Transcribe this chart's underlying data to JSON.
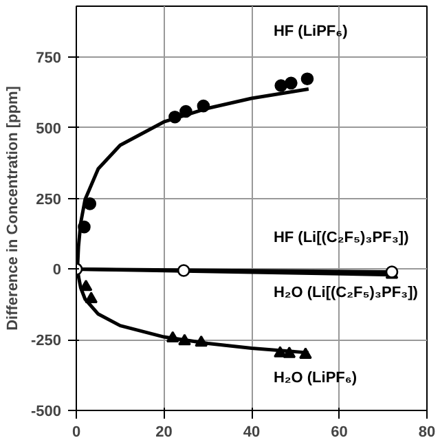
{
  "chart_data": {
    "type": "scatter",
    "ylabel": "Difference in Concentration [ppm]",
    "xlim": [
      0,
      80
    ],
    "xticks": [
      0,
      20,
      40,
      60,
      80
    ],
    "ylim": [
      -500,
      930
    ],
    "yticks": [
      -500,
      -250,
      0,
      250,
      500,
      750
    ],
    "grid": true,
    "series": [
      {
        "name": "HF (LiPF₆)",
        "color": "#000000",
        "marker": "circle",
        "x": [
          1.8,
          3.1,
          22.5,
          25,
          29,
          46.7,
          49,
          52.7
        ],
        "values": [
          149,
          231,
          538,
          558,
          577,
          649,
          658,
          673
        ]
      },
      {
        "type": "line",
        "color": "#000000",
        "marker": "none",
        "x": [
          0.25,
          0.5,
          1,
          2,
          5,
          10,
          20,
          30,
          40,
          53
        ],
        "values": [
          0,
          80,
          163,
          246,
          355,
          438,
          521,
          569,
          604,
          637
        ]
      },
      {
        "name": "H₂O (LiPF₆)",
        "color": "#000000",
        "marker": "triangle",
        "x": [
          2.2,
          3.4,
          22,
          24.7,
          28.5,
          46.5,
          48.6,
          52.3
        ],
        "values": [
          -63,
          -106,
          -245,
          -255,
          -260,
          -298,
          -300,
          -303
        ]
      },
      {
        "type": "line",
        "color": "#000000",
        "marker": "none",
        "x": [
          0.3,
          0.5,
          1,
          2,
          5,
          10,
          20,
          30,
          40,
          53
        ],
        "values": [
          0,
          -26,
          -66,
          -106,
          -159,
          -200,
          -240,
          -263,
          -280,
          -296
        ]
      },
      {
        "name": "HF (Li[(C₂F₅)₃PF₃])",
        "color": "#ffffff",
        "marker": "circle",
        "x": [
          0,
          24.5,
          72
        ],
        "values": [
          0,
          -5,
          -10
        ]
      },
      {
        "type": "line",
        "color": "#000000",
        "marker": "none",
        "x": [
          0,
          72
        ],
        "values": [
          0,
          -10
        ]
      },
      {
        "name": "H₂O (Li[(C₂F₅)₃PF₃])",
        "color": "#000000",
        "marker": "triangle",
        "x": [
          72
        ],
        "values": [
          -20
        ]
      },
      {
        "type": "line",
        "color": "#000000",
        "marker": "none",
        "x": [
          0,
          72
        ],
        "values": [
          0,
          -20
        ]
      }
    ]
  }
}
